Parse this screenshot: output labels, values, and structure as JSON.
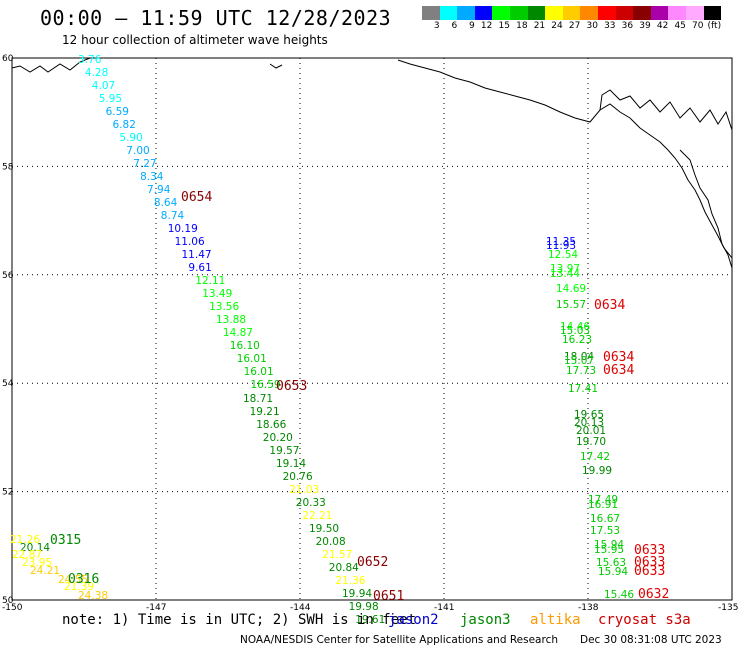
{
  "header": {
    "title": "00:00 – 11:59 UTC 12/28/2023",
    "subtitle": "12 hour collection of altimeter wave heights"
  },
  "colorbar": {
    "colors": [
      "#808080",
      "#00ffff",
      "#00aaff",
      "#0000ff",
      "#00ff00",
      "#00cc00",
      "#008800",
      "#ffff00",
      "#ffcc00",
      "#ff8800",
      "#ff0000",
      "#cc0000",
      "#880000",
      "#aa00aa",
      "#ff88ff",
      "#ffaaff",
      "#000000"
    ],
    "ticks": [
      "3",
      "6",
      "9",
      "12",
      "15",
      "18",
      "21",
      "24",
      "27",
      "30",
      "33",
      "36",
      "39",
      "42",
      "45",
      "70",
      "(ft)"
    ]
  },
  "map": {
    "lat_range": [
      50,
      60
    ],
    "lon_range": [
      -150,
      -135
    ],
    "lat_ticks": [
      "60",
      "58",
      "56",
      "54",
      "52",
      "50"
    ],
    "lon_ticks": [
      "-150",
      "-147",
      "-144",
      "-141",
      "-138",
      "-135"
    ]
  },
  "chart_data": {
    "type": "scatter",
    "x_axis": "longitude",
    "y_axis": "latitude",
    "color_scale_ft": [
      "3",
      "6",
      "9",
      "12",
      "15",
      "18",
      "21",
      "24",
      "27",
      "30",
      "33",
      "36",
      "39",
      "42",
      "45",
      "70"
    ],
    "passes": [
      {
        "time_label": "0654",
        "satellite": "cryosat s3a",
        "values": [
          "3.76",
          "4.28",
          "4.07",
          "5.95",
          "6.59",
          "6.82",
          "5.90",
          "7.00",
          "7.27",
          "8.34",
          "7.94",
          "8.64",
          "8.74",
          "10.19",
          "11.06",
          "11.47",
          "9.61",
          "12.11",
          "13.49",
          "13.56",
          "13.88",
          "14.87",
          "16.10",
          "16.01",
          "16.01",
          "16.59"
        ]
      },
      {
        "time_label": "0653",
        "satellite": "cryosat s3a",
        "values": [
          "18.71",
          "19.21",
          "18.66",
          "20.20",
          "19.57",
          "19.14",
          "20.76",
          "21.03",
          "20.33",
          "22.21",
          "19.50",
          "20.08",
          "21.57",
          "20.84",
          "21.36",
          "19.94",
          "19.98",
          "19.61"
        ]
      },
      {
        "time_label": "0652",
        "satellite": "cryosat s3a",
        "values": []
      },
      {
        "time_label": "0651",
        "satellite": "cryosat s3a",
        "values": []
      },
      {
        "time_label": "0315",
        "satellite": "jason3",
        "values": [
          "21.26",
          "20.14",
          "22.87",
          "23.95",
          "24.21"
        ]
      },
      {
        "time_label": "0316",
        "satellite": "jason3",
        "values": [
          "24.55",
          "21.39",
          "24.38"
        ]
      },
      {
        "time_label": "0634",
        "satellite": "cryosat s3a",
        "values": [
          "11.35",
          "11.93",
          "12.54",
          "13.97",
          "13.44",
          "14.69",
          "15.57",
          "14.46",
          "15.03",
          "16.23",
          "18.04",
          "15.07",
          "17.73",
          "17.41",
          "19.65",
          "20.13",
          "20.01",
          "19.70",
          "17.42",
          "19.99"
        ]
      },
      {
        "time_label": "0633",
        "satellite": "cryosat s3a",
        "values": [
          "17.49",
          "16.91",
          "16.67",
          "17.53",
          "15.94",
          "15.95",
          "15.63",
          "15.94"
        ]
      },
      {
        "time_label": "0632",
        "satellite": "cryosat s3a",
        "values": [
          "15.46"
        ]
      }
    ]
  },
  "notes": {
    "note_text": "note: 1) Time is in UTC; 2) SWH is in feet",
    "legend": [
      {
        "name": "jason2",
        "color": "#0000cc"
      },
      {
        "name": "jason3",
        "color": "#008800"
      },
      {
        "name": "altika",
        "color": "#ff9900"
      },
      {
        "name": "cryosat s3a",
        "color": "#cc0000"
      }
    ]
  },
  "footer": {
    "credit": "NOAA/NESDIS Center for Satellite Applications and Research",
    "date": "Dec 30 08:31:08 UTC 2023"
  }
}
